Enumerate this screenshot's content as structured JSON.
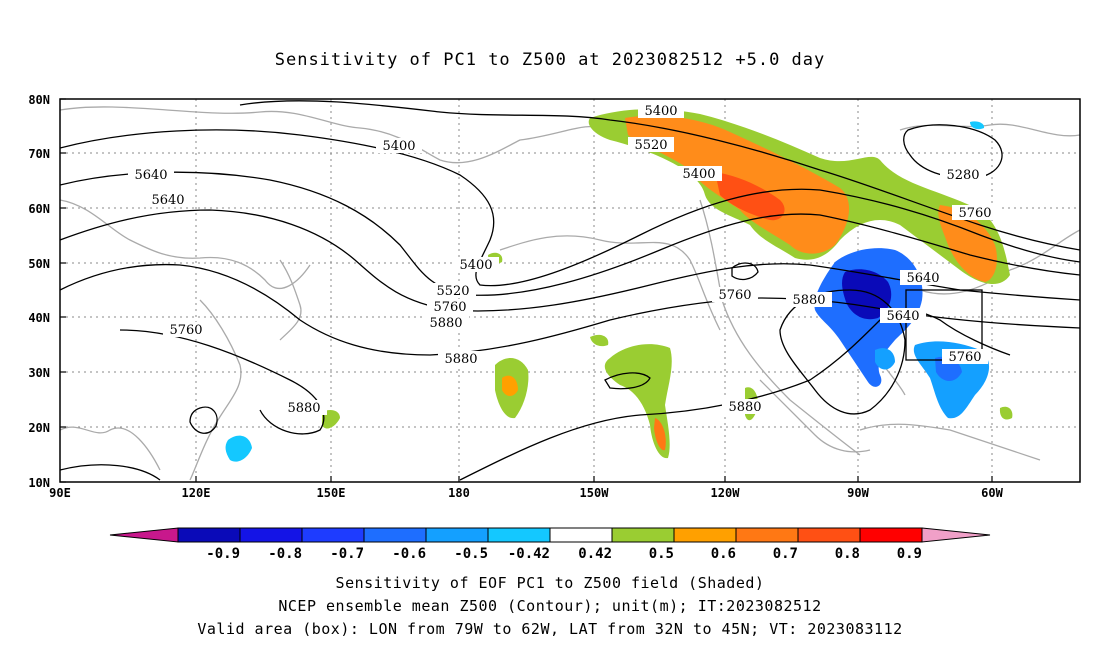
{
  "title": "Sensitivity of PC1 to Z500 at 2023082512 +5.0 day",
  "axes": {
    "lat_labels": [
      "80N",
      "70N",
      "60N",
      "50N",
      "40N",
      "30N",
      "20N",
      "10N"
    ],
    "lon_labels": [
      "90E",
      "120E",
      "150E",
      "180",
      "150W",
      "120W",
      "90W",
      "60W"
    ]
  },
  "contour_labels": [
    "5400",
    "5400",
    "5520",
    "5640",
    "5400",
    "5280",
    "5640",
    "5760",
    "5400",
    "5520",
    "5640",
    "5760",
    "5880",
    "5760",
    "5880",
    "5640",
    "5760",
    "5880",
    "5760",
    "5880",
    "5880"
  ],
  "colorbar": {
    "labels": [
      "-0.9",
      "-0.8",
      "-0.7",
      "-0.6",
      "-0.5",
      "-0.42",
      "0.42",
      "0.5",
      "0.6",
      "0.7",
      "0.8",
      "0.9"
    ],
    "colors": [
      "#0a0ab8",
      "#1414e6",
      "#1e3cff",
      "#1e6eff",
      "#14a0ff",
      "#14c8ff",
      "#ffffff",
      "#9acd32",
      "#ffa000",
      "#ff7814",
      "#ff5014",
      "#ff0000"
    ],
    "low_end_color": "#c8188c",
    "high_end_color": "#f0a0c8"
  },
  "captions": [
    "Sensitivity of EOF PC1 to Z500 field (Shaded)",
    "NCEP ensemble mean Z500 (Contour); unit(m); IT:2023082512",
    "Valid area (box): LON from 79W to 62W, LAT from 32N to 45N; VT: 2023083112"
  ]
}
